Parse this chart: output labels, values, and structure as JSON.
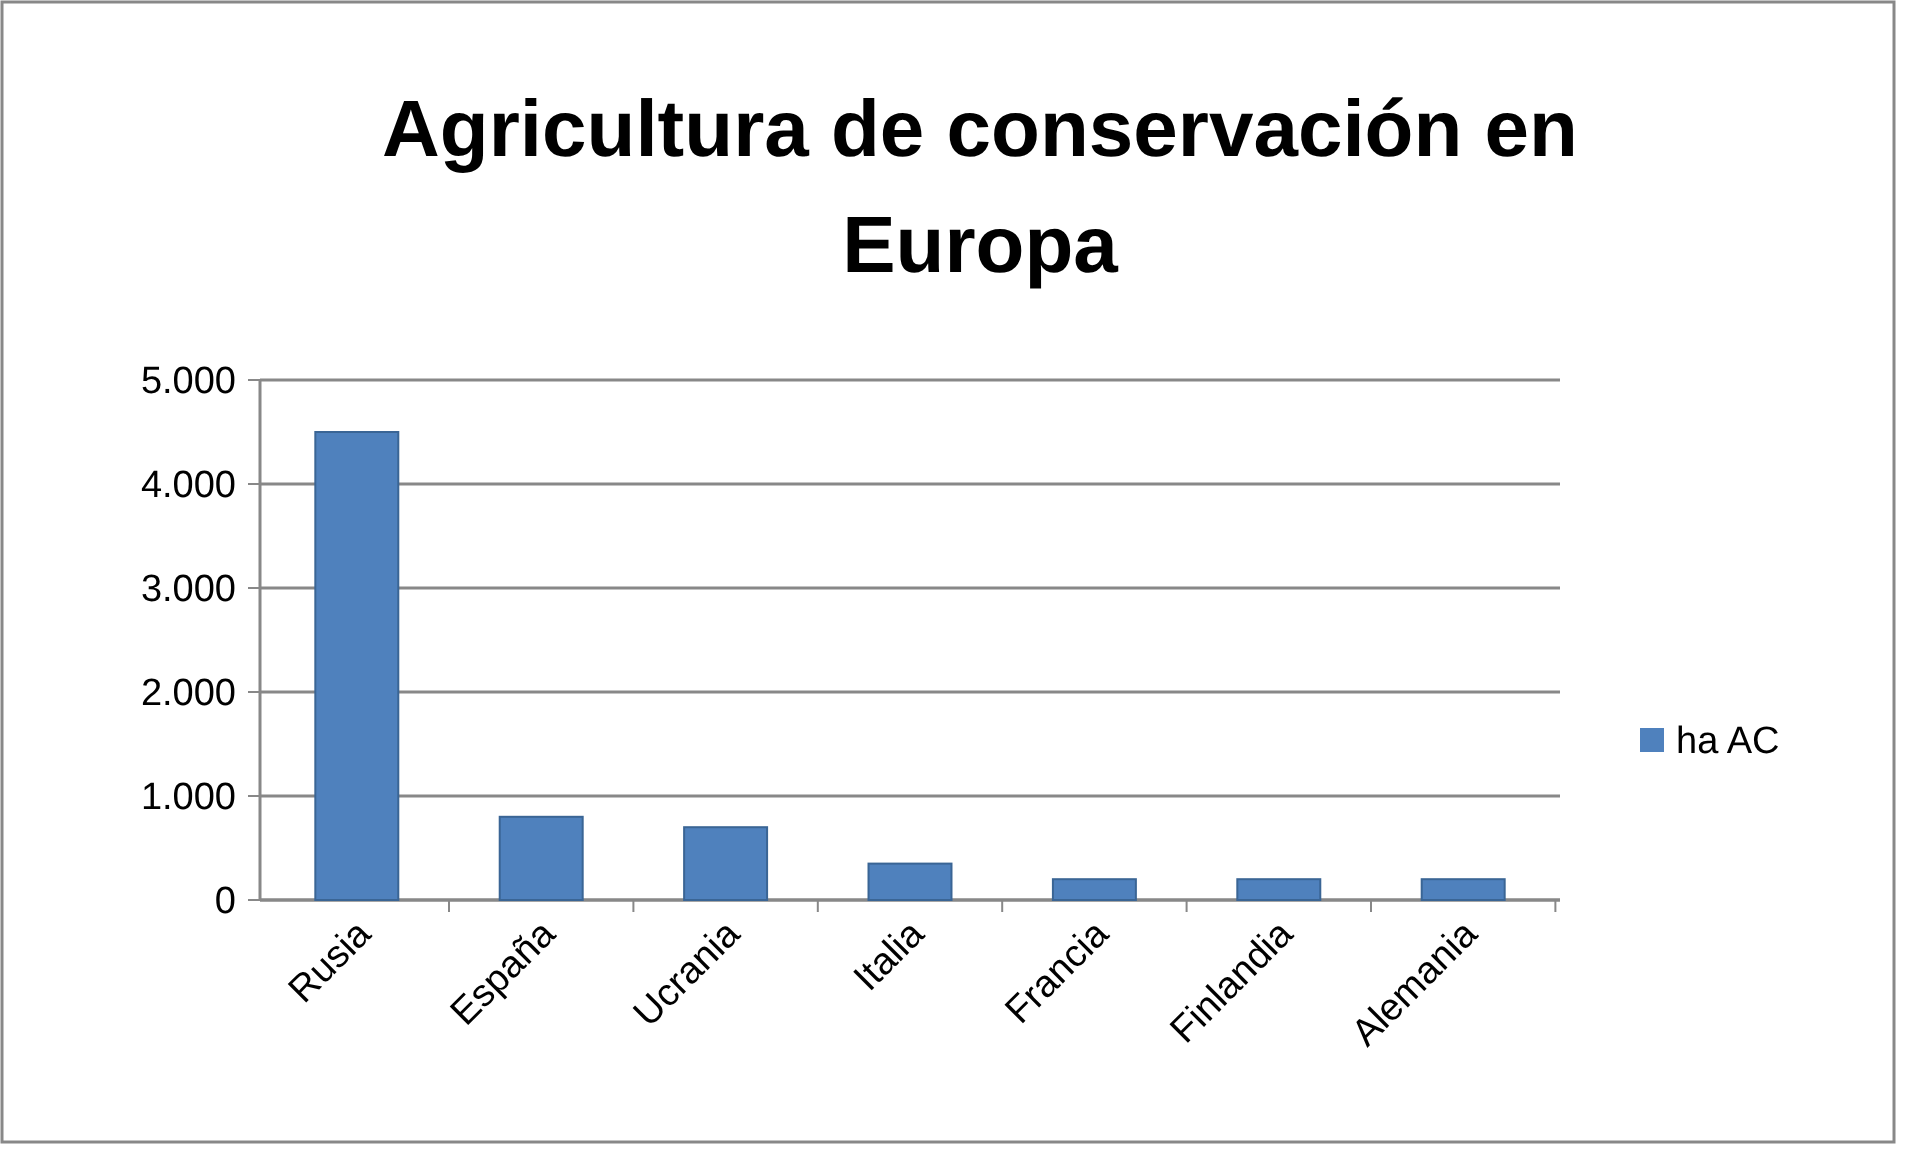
{
  "chart_data": {
    "type": "bar",
    "title": "Agricultura de conservación en Europa",
    "categories": [
      "Rusia",
      "España",
      "Ucrania",
      "Italia",
      "Francia",
      "Finlandia",
      "Alemania"
    ],
    "series": [
      {
        "name": "ha AC",
        "color": "#4f81bd",
        "values": [
          4500,
          800,
          700,
          350,
          200,
          200,
          200
        ]
      }
    ],
    "ylim": [
      0,
      5000
    ],
    "yticks": [
      {
        "value": 0,
        "label": "0"
      },
      {
        "value": 1000,
        "label": "1.000"
      },
      {
        "value": 2000,
        "label": "2.000"
      },
      {
        "value": 3000,
        "label": "3.000"
      },
      {
        "value": 4000,
        "label": "4.000"
      },
      {
        "value": 5000,
        "label": "5.000"
      }
    ],
    "grid": "y",
    "legend": "right"
  }
}
